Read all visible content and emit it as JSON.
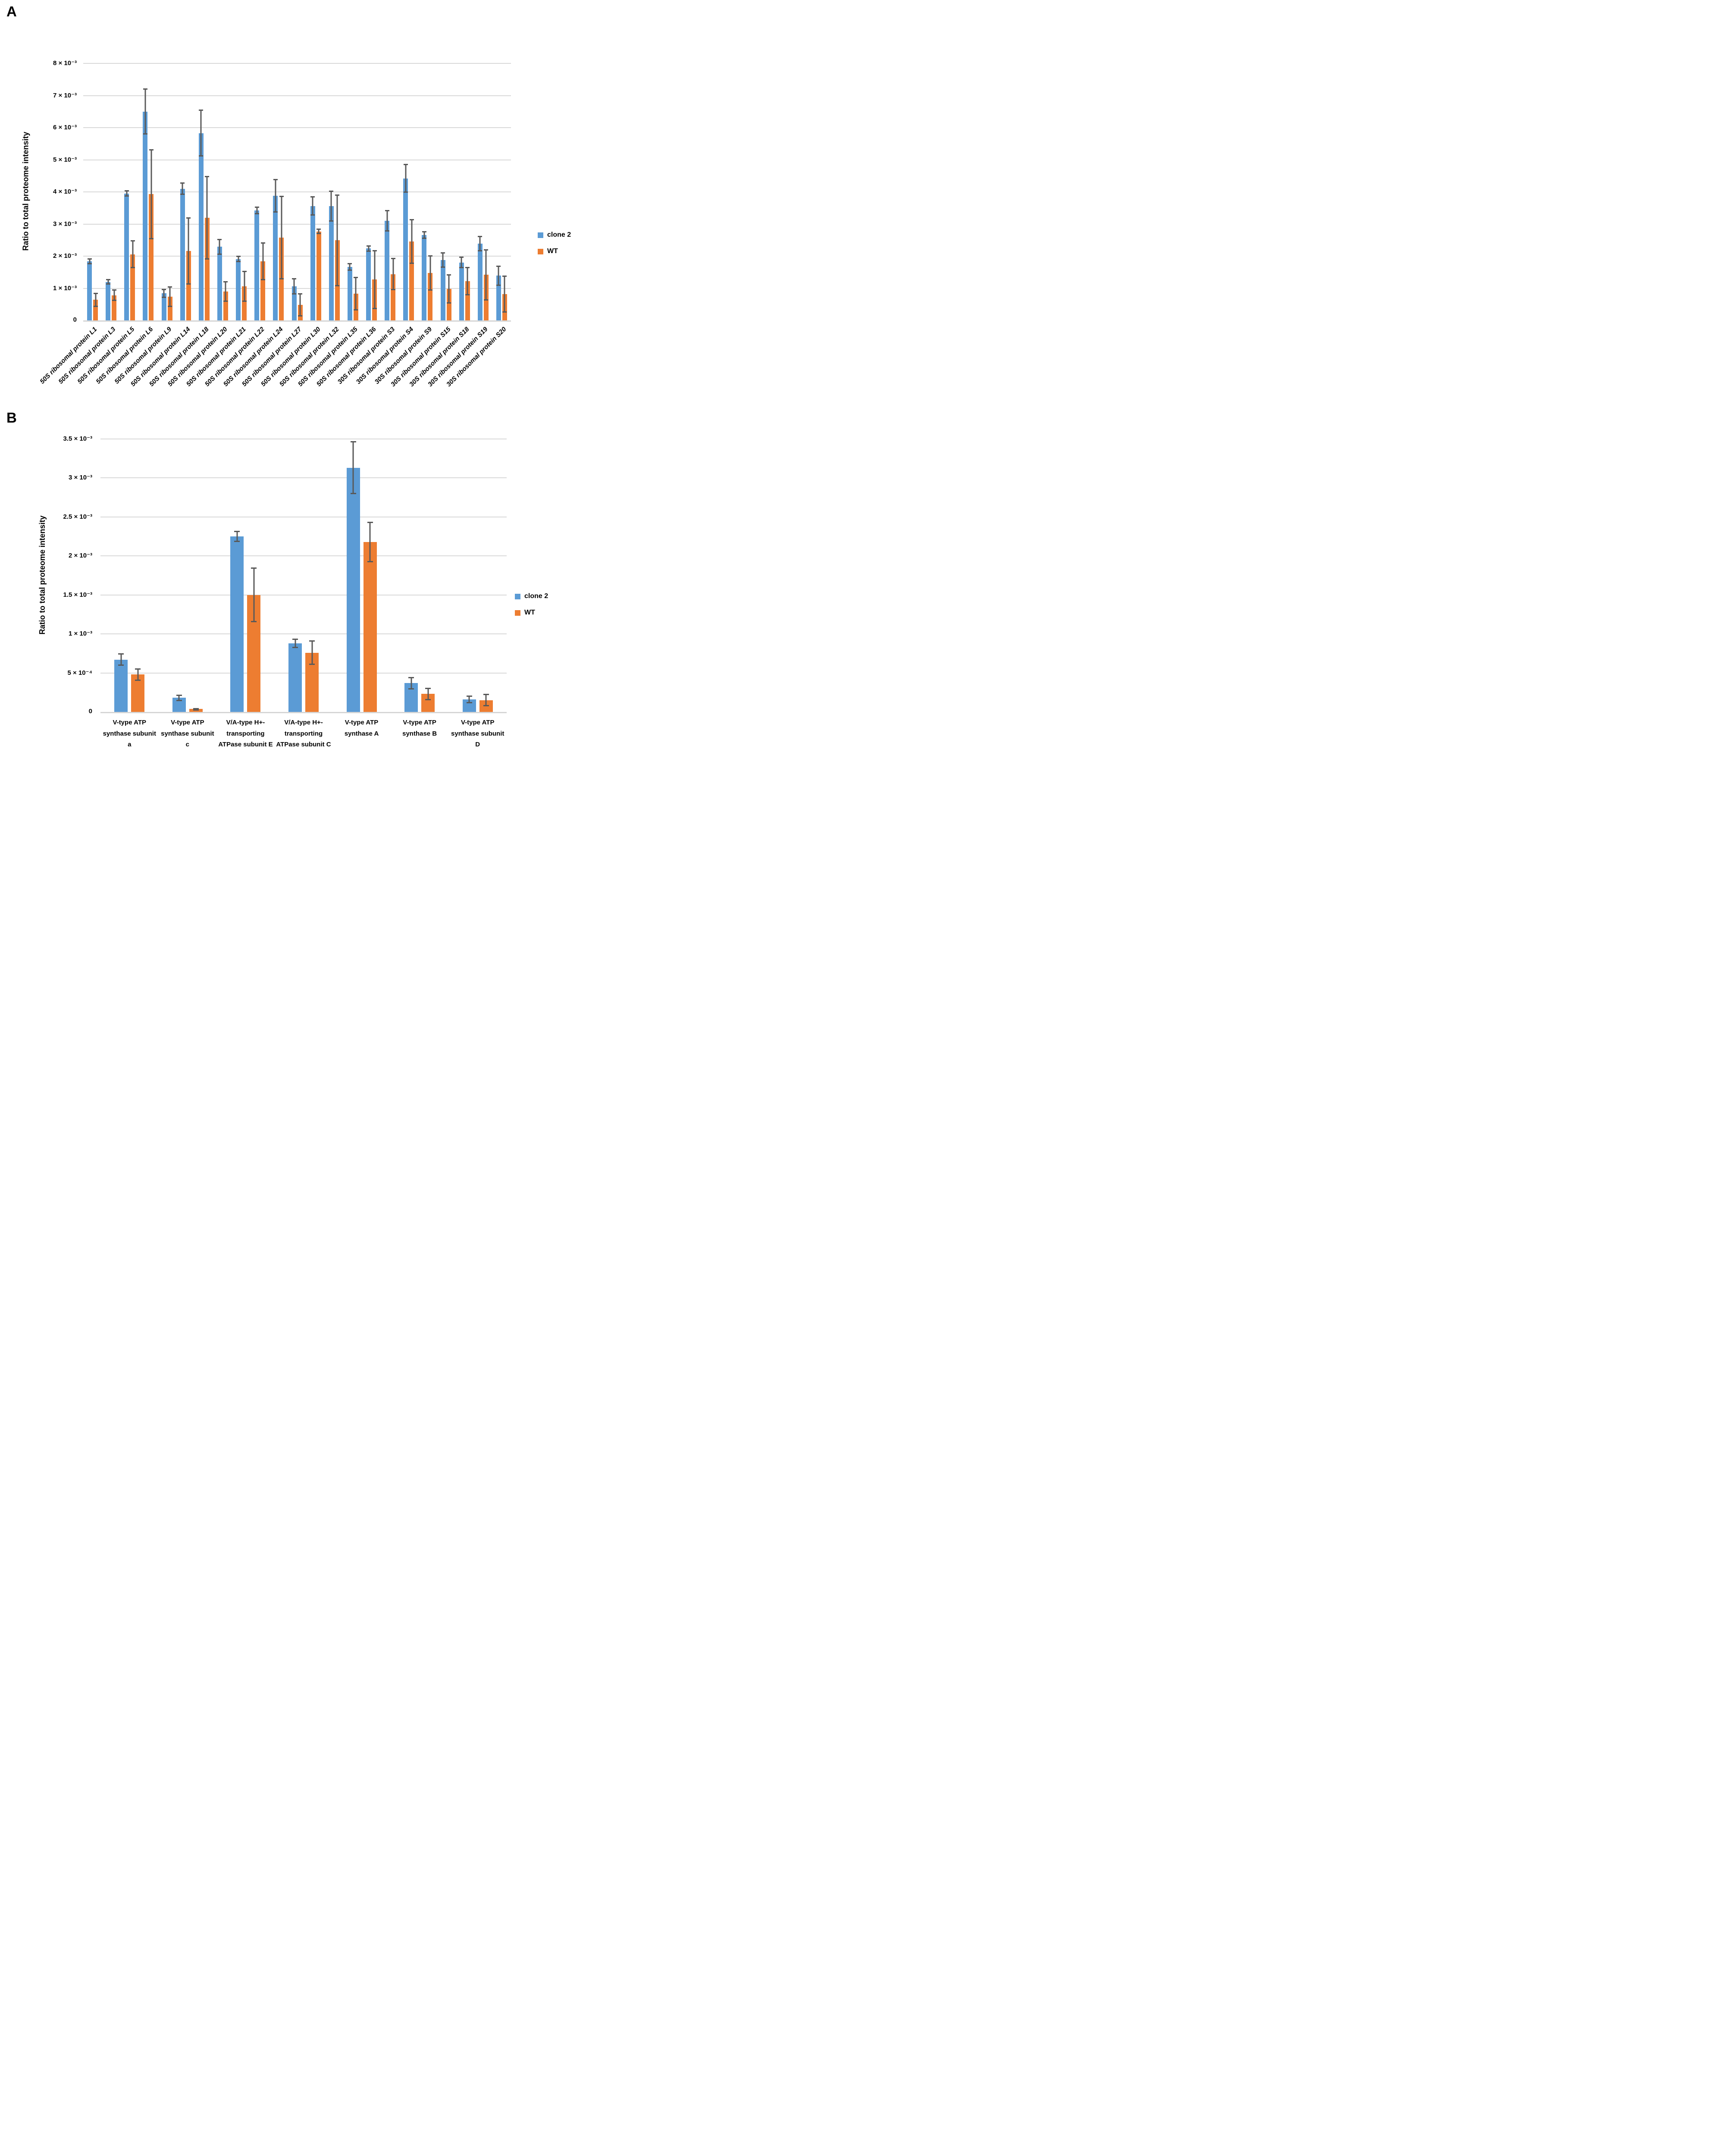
{
  "style": {
    "background": "#ffffff",
    "gridline_color": "#d9d9d9",
    "axis_color": "#d6d6d6",
    "error_bar_color": "#595959",
    "clone2_color": "#5b9bd5",
    "wt_color": "#ed7d31"
  },
  "chart_data": [
    {
      "id": "A",
      "type": "bar",
      "panel_label": "A",
      "title": "",
      "xlabel": "",
      "ylabel": "Ratio to total proteome intensity",
      "ylim": [
        0,
        0.008
      ],
      "grid": true,
      "legend_position": "right",
      "legend": [
        "clone 2",
        "WT"
      ],
      "yticks": [
        {
          "value": 0.008,
          "label": "8 × 10⁻³"
        },
        {
          "value": 0.007,
          "label": "7 × 10⁻³"
        },
        {
          "value": 0.006,
          "label": "6 × 10⁻³"
        },
        {
          "value": 0.005,
          "label": "5 × 10⁻³"
        },
        {
          "value": 0.004,
          "label": "4 × 10⁻³"
        },
        {
          "value": 0.003,
          "label": "3 × 10⁻³"
        },
        {
          "value": 0.002,
          "label": "2 × 10⁻³"
        },
        {
          "value": 0.001,
          "label": "1 × 10⁻³"
        },
        {
          "value": 0,
          "label": "0"
        }
      ],
      "categories": [
        "50S ribosomal protein L1",
        "50S ribosomal protein L3",
        "50S ribosomal protein L5",
        "50S ribosomal protein L6",
        "50S ribosomal protein L9",
        "50S ribosomal protein L14",
        "50S ribosomal protein L18",
        "50S ribosomal protein L20",
        "50S ribosomal protein L21",
        "50S ribosomal protein L22",
        "50S ribosomal protein L24",
        "50S ribosomal protein L27",
        "50S ribosomal protein L30",
        "50S ribosomal protein L32",
        "50S ribosomal protein L35",
        "50S ribosomal protein L36",
        "30S ribosomal protein S3",
        "30S ribosomal protein S4",
        "30S ribosomal protein S9",
        "30S ribosomal protein S15",
        "30S ribosomal protein S18",
        "30S ribosomal protein S19",
        "30S ribosomal protein S20"
      ],
      "series": [
        {
          "name": "clone 2",
          "color": "#5b9bd5",
          "values": [
            0.00184,
            0.0012,
            0.00395,
            0.0065,
            0.00084,
            0.0041,
            0.00583,
            0.00229,
            0.00191,
            0.00342,
            0.00388,
            0.00106,
            0.00356,
            0.00356,
            0.00166,
            0.00224,
            0.0031,
            0.00442,
            0.00266,
            0.00188,
            0.0018,
            0.00239,
            0.00139
          ],
          "errors": [
            9e-05,
            9e-05,
            0.0001,
            0.00072,
            0.00014,
            0.0002,
            0.00073,
            0.00025,
            0.0001,
            0.00012,
            0.00052,
            0.00025,
            0.0003,
            0.00048,
            0.00012,
            0.0001,
            0.00033,
            0.00045,
            0.00012,
            0.00024,
            0.00018,
            0.00024,
            0.00031
          ]
        },
        {
          "name": "WT",
          "color": "#ed7d31",
          "values": [
            0.00064,
            0.00078,
            0.00206,
            0.00393,
            0.00074,
            0.00216,
            0.00319,
            0.0009,
            0.00106,
            0.00184,
            0.00258,
            0.00048,
            0.00277,
            0.00249,
            0.00083,
            0.00127,
            0.00144,
            0.00246,
            0.00148,
            0.00098,
            0.00122,
            0.00142,
            0.00082
          ],
          "errors": [
            0.00022,
            0.00018,
            0.00043,
            0.0014,
            0.00032,
            0.00105,
            0.0013,
            0.00032,
            0.00048,
            0.00059,
            0.0013,
            0.00036,
            9e-05,
            0.00143,
            0.00052,
            0.00092,
            0.0005,
            0.0007,
            0.00055,
            0.00045,
            0.00044,
            0.0008,
            0.00058
          ]
        }
      ]
    },
    {
      "id": "B",
      "type": "bar",
      "panel_label": "B",
      "title": "",
      "xlabel": "",
      "ylabel": "Ratio to total proteome intensity",
      "ylim": [
        0,
        0.0035
      ],
      "grid": true,
      "legend_position": "right",
      "legend": [
        "clone 2",
        "WT"
      ],
      "yticks": [
        {
          "value": 0.0035,
          "label": "3.5 × 10⁻³"
        },
        {
          "value": 0.003,
          "label": "3 × 10⁻³"
        },
        {
          "value": 0.0025,
          "label": "2.5 × 10⁻³"
        },
        {
          "value": 0.002,
          "label": "2 × 10⁻³"
        },
        {
          "value": 0.0015,
          "label": "1.5 × 10⁻³"
        },
        {
          "value": 0.001,
          "label": "1 × 10⁻³"
        },
        {
          "value": 0.0005,
          "label": "5 × 10⁻⁴"
        },
        {
          "value": 0,
          "label": "0"
        }
      ],
      "categories": [
        [
          "V-type ATP",
          "synthase subunit",
          "a"
        ],
        [
          "V-type ATP",
          "synthase subunit",
          "c"
        ],
        [
          "V/A-type H+-",
          "transporting",
          "ATPase subunit E"
        ],
        [
          "V/A-type H+-",
          "transporting",
          "ATPase subunit C"
        ],
        [
          "V-type ATP",
          "synthase A"
        ],
        [
          "V-type ATP",
          "synthase B"
        ],
        [
          "V-type ATP",
          "synthase subunit",
          "D"
        ]
      ],
      "series": [
        {
          "name": "clone 2",
          "color": "#5b9bd5",
          "values": [
            0.00067,
            0.00018,
            0.00225,
            0.00088,
            0.00313,
            0.00037,
            0.00016
          ],
          "errors": [
            8e-05,
            4e-05,
            7e-05,
            6e-05,
            0.00034,
            8e-05,
            5e-05
          ]
        },
        {
          "name": "WT",
          "color": "#ed7d31",
          "values": [
            0.00048,
            4e-05,
            0.0015,
            0.00076,
            0.00218,
            0.00023,
            0.00015
          ],
          "errors": [
            8e-05,
            1e-05,
            0.00035,
            0.00016,
            0.00026,
            8e-05,
            8e-05
          ]
        }
      ]
    }
  ]
}
